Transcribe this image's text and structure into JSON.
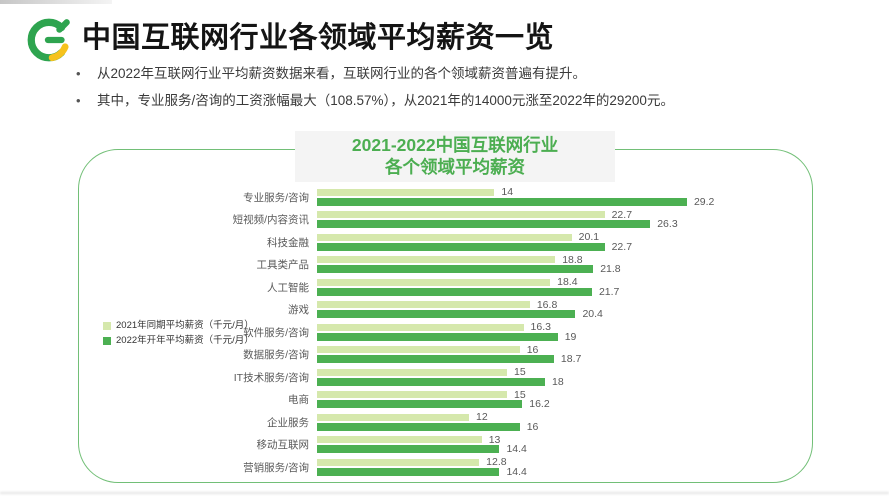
{
  "colors": {
    "bar_2021": "#d5e8ac",
    "bar_2022": "#4cb052",
    "chart_title_green": "#4cae51",
    "box_border_green": "#72bf77",
    "logo_green": "#2ea44f",
    "logo_yellow": "#f6c21d"
  },
  "header": {
    "title": "中国互联网行业各领域平均薪资一览",
    "bullet_marker": "•",
    "bullets": [
      "从2022年互联网行业平均薪资数据来看，互联网行业的各个领域薪资普遍有提升。",
      "其中，专业服务/咨询的工资涨幅最大（108.57%），从2021年的14000元涨至2022年的29200元。"
    ]
  },
  "chart": {
    "title_line1": "2021-2022中国互联网行业",
    "title_line2": "各个领域平均薪资",
    "legend": [
      {
        "label": "2021年同期平均薪资（千元/月）"
      },
      {
        "label": "2022年开年平均薪资（千元/月）"
      }
    ]
  },
  "chart_data": {
    "type": "bar",
    "orientation": "horizontal",
    "title": "2021-2022中国互联网行业各个领域平均薪资",
    "unit": "千元/月",
    "xlim": [
      0,
      30
    ],
    "grid": false,
    "legend_position": "left-middle",
    "categories": [
      "专业服务/咨询",
      "短视频/内容资讯",
      "科技金融",
      "工具类产品",
      "人工智能",
      "游戏",
      "软件服务/咨询",
      "数据服务/咨询",
      "IT技术服务/咨询",
      "电商",
      "企业服务",
      "移动互联网",
      "营销服务/咨询"
    ],
    "series": [
      {
        "name": "2021年同期平均薪资（千元/月）",
        "values": [
          14,
          22.7,
          20.1,
          18.8,
          18.4,
          16.8,
          16.3,
          16,
          15,
          15,
          12,
          13,
          12.8
        ],
        "labels": [
          "14",
          "22.7",
          "20.1",
          "18.8",
          "18.4",
          "16.8",
          "16.3",
          "16",
          "15",
          "15",
          "12",
          "13",
          "12.8"
        ]
      },
      {
        "name": "2022年开年平均薪资（千元/月）",
        "values": [
          29.2,
          26.3,
          22.7,
          21.8,
          21.7,
          20.4,
          19,
          18.7,
          18,
          16.2,
          16,
          14.4,
          14.4
        ],
        "labels": [
          "29.2",
          "26.3",
          "22.7",
          "21.8",
          "21.7",
          "20.4",
          "19",
          "18.7",
          "18",
          "16.2",
          "16",
          "14.4",
          "14.4"
        ]
      }
    ]
  }
}
